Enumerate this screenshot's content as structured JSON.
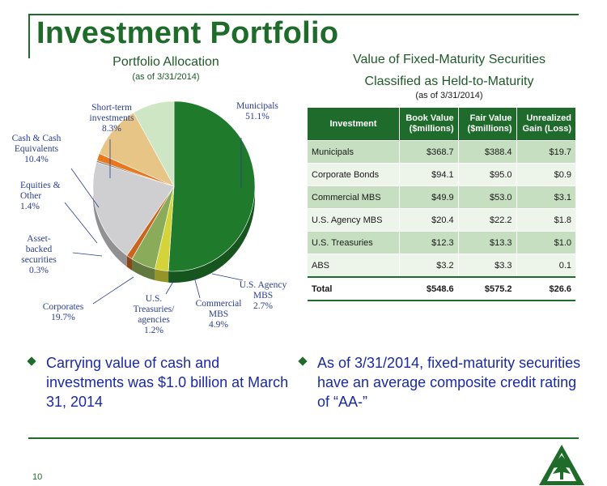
{
  "slide": {
    "title": "Investment Portfolio",
    "page_number": "10",
    "accent_color": "#1f6b2a"
  },
  "pie": {
    "title": "Portfolio Allocation",
    "subtitle": "(as of  3/31/2014)"
  },
  "table": {
    "title_line1": "Value of Fixed-Maturity Securities",
    "title_line2": "Classified as Held-to-Maturity",
    "subtitle": "(as of 3/31/2014)",
    "headers": [
      "Investment",
      "Book Value ($millions)",
      "Fair Value ($millions)",
      "Unrealized Gain (Loss)"
    ],
    "rows": [
      {
        "name": "Municipals",
        "book": "$368.7",
        "fair": "$388.4",
        "gain": "$19.7"
      },
      {
        "name": "Corporate Bonds",
        "book": "$94.1",
        "fair": "$95.0",
        "gain": "$0.9"
      },
      {
        "name": "Commercial MBS",
        "book": "$49.9",
        "fair": "$53.0",
        "gain": "$3.1"
      },
      {
        "name": "U.S. Agency MBS",
        "book": "$20.4",
        "fair": "$22.2",
        "gain": "$1.8"
      },
      {
        "name": "U.S. Treasuries",
        "book": "$12.3",
        "fair": "$13.3",
        "gain": "$1.0"
      },
      {
        "name": "ABS",
        "book": "$3.2",
        "fair": "$3.3",
        "gain": "0.1"
      }
    ],
    "total": {
      "name": "Total",
      "book": "$548.6",
      "fair": "$575.2",
      "gain": "$26.6"
    }
  },
  "bullets": [
    "Carrying value of cash and investments was $1.0 billion at March 31, 2014",
    "As of 3/31/2014, fixed-maturity securities have an average composite credit rating of “AA-”"
  ],
  "logo_icon": "tree-logo-icon",
  "chart_data": {
    "type": "pie",
    "title": "Portfolio Allocation",
    "subtitle": "(as of  3/31/2014)",
    "unit": "%",
    "slices": [
      {
        "lines": [
          "Municipals",
          "51.1%"
        ],
        "value": 51.1,
        "color": "#1f7a2b"
      },
      {
        "lines": [
          "U.S. Agency",
          "MBS",
          "2.7%"
        ],
        "value": 2.7,
        "color": "#d4d43a"
      },
      {
        "lines": [
          "Commercial",
          "MBS",
          "4.9%"
        ],
        "value": 4.9,
        "color": "#8aab5a"
      },
      {
        "lines": [
          "U.S.",
          "Treasuries/",
          "agencies",
          "1.2%"
        ],
        "value": 1.2,
        "color": "#c9651f"
      },
      {
        "lines": [
          "Corporates",
          "19.7%"
        ],
        "value": 19.7,
        "color": "#cfcfd2"
      },
      {
        "lines": [
          "Asset-",
          "backed",
          "securities",
          "0.3%"
        ],
        "value": 0.3,
        "color": "#7a7a7a"
      },
      {
        "lines": [
          "Equities &",
          "Other",
          "1.4%"
        ],
        "value": 1.4,
        "color": "#e8781e"
      },
      {
        "lines": [
          "Cash & Cash",
          "Equivalents",
          "10.4%"
        ],
        "value": 10.4,
        "color": "#e7c587"
      },
      {
        "lines": [
          "Short-term",
          "investments",
          "8.3%"
        ],
        "value": 8.3,
        "color": "#cfe6c4"
      }
    ]
  }
}
